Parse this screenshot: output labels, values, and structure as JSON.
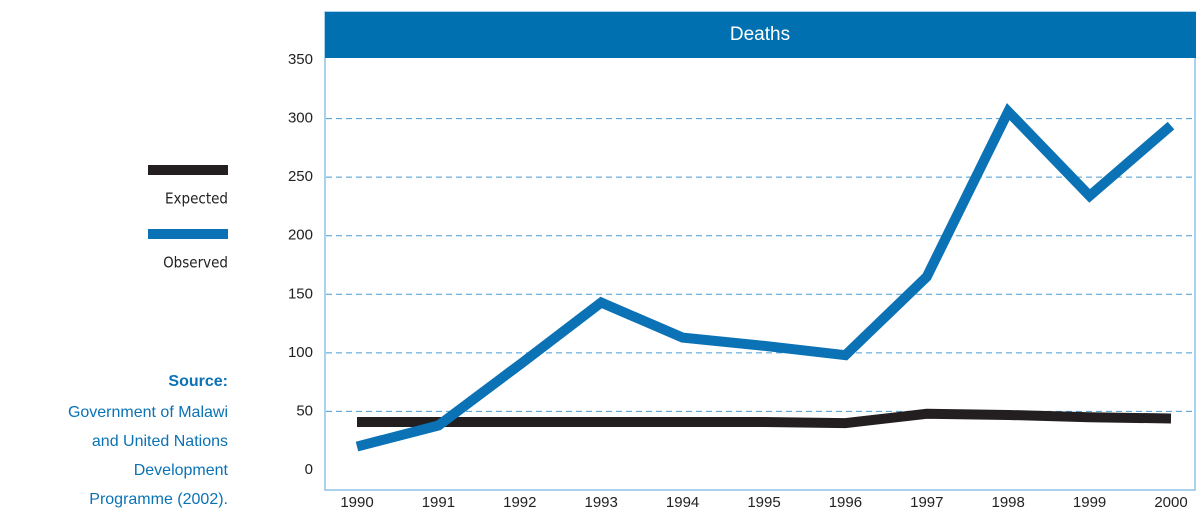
{
  "chart_data": {
    "type": "line",
    "title": "Deaths",
    "x": [
      1990,
      1991,
      1992,
      1993,
      1994,
      1995,
      1996,
      1997,
      1998,
      1999,
      2000
    ],
    "xlim": [
      1990,
      2000
    ],
    "xticks": [
      1990,
      1991,
      1992,
      1993,
      1994,
      1995,
      1996,
      1997,
      1998,
      1999,
      2000
    ],
    "ylim": [
      0,
      350
    ],
    "yticks": [
      0,
      50,
      100,
      150,
      200,
      250,
      300,
      350
    ],
    "grid": true,
    "legend": "left",
    "series": [
      {
        "name": "Expected",
        "color": "#231f20",
        "values": [
          41,
          41,
          41,
          41,
          41,
          41,
          40,
          48,
          47,
          45,
          44
        ]
      },
      {
        "name": "Observed",
        "color": "#0a72b5",
        "values": [
          20,
          38,
          90,
          143,
          113,
          106,
          98,
          165,
          306,
          234,
          294
        ]
      }
    ],
    "source_label": "Source:",
    "source_lines": [
      "Government of Malawi",
      "and United Nations",
      "Development",
      "Programme (2002)."
    ]
  }
}
